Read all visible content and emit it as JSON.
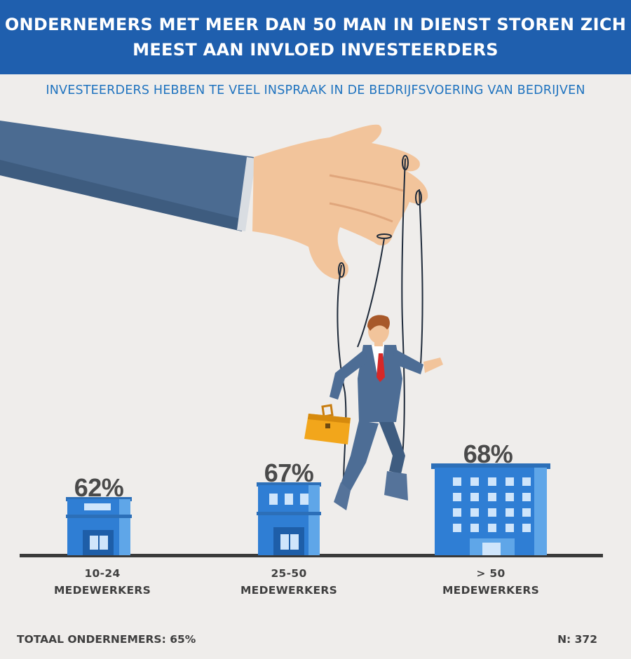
{
  "header": {
    "title": "ONDERNEMERS MET MEER DAN 50 MAN IN DIENST STOREN ZICH MEEST AAN INVLOED INVESTEERDERS"
  },
  "subtitle": "INVESTEERDERS HEBBEN TE VEEL INSPRAAK IN DE BEDRIJFSVOERING VAN BEDRIJVEN",
  "chart_data": {
    "type": "bar",
    "title": "ONDERNEMERS MET MEER DAN 50 MAN IN DIENST STOREN ZICH MEEST AAN INVLOED INVESTEERDERS",
    "subtitle": "INVESTEERDERS HEBBEN TE VEEL INSPRAAK IN DE BEDRIJFSVOERING VAN BEDRIJVEN",
    "categories": [
      "10-24 MEDEWERKERS",
      "25-50 MEDEWERKERS",
      "> 50 MEDEWERKERS"
    ],
    "values": [
      62,
      67,
      68
    ],
    "value_labels": [
      "62%",
      "67%",
      "68%"
    ],
    "category_lines": [
      [
        "10-24",
        "MEDEWERKERS"
      ],
      [
        "25-50",
        "MEDEWERKERS"
      ],
      [
        "> 50",
        "MEDEWERKERS"
      ]
    ],
    "unit": "%",
    "grid": false,
    "legend": "none"
  },
  "footer": {
    "total": "TOTAAL ONDERNEMERS: 65%",
    "n": "N: 372"
  },
  "colors": {
    "header_bg": "#1f5fae",
    "subtitle": "#1f73bf",
    "building_blue": "#2f7ed4",
    "building_light": "#5fa6e8",
    "baseline": "#3a3a3a",
    "background": "#efedeb"
  },
  "icons": [
    "hand-illustration",
    "puppet-businessman-illustration",
    "briefcase-icon",
    "building-icon"
  ]
}
